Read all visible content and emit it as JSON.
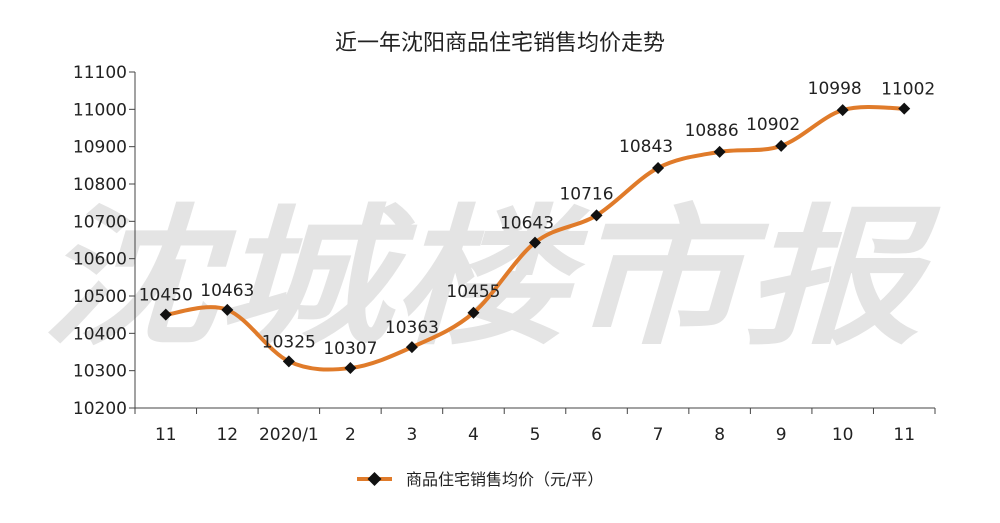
{
  "watermark": "沈城楼市报",
  "chart_data": {
    "type": "line",
    "title": "近一年沈阳商品住宅销售均价走势",
    "categories": [
      "11",
      "12",
      "2020/1",
      "2",
      "3",
      "4",
      "5",
      "6",
      "7",
      "8",
      "9",
      "10",
      "11"
    ],
    "series": [
      {
        "name": "商品住宅销售均价（元/平）",
        "values": [
          10450,
          10463,
          10325,
          10307,
          10363,
          10455,
          10643,
          10716,
          10843,
          10886,
          10902,
          10998,
          11002
        ],
        "color": "#e07b2a",
        "marker_color": "#111111"
      }
    ],
    "ylim": [
      10200,
      11100
    ],
    "yticks": [
      10200,
      10300,
      10400,
      10500,
      10600,
      10700,
      10800,
      10900,
      11000,
      11100
    ],
    "xlabel": "",
    "ylabel": "",
    "grid": false,
    "legend": "bottom",
    "smooth": true
  }
}
